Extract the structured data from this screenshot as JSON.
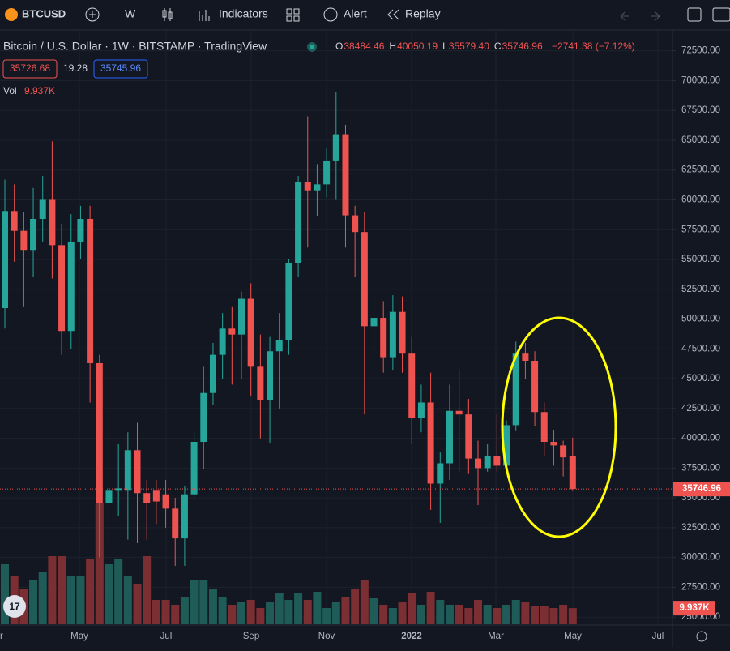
{
  "toolbar": {
    "symbol": "BTCUSD",
    "interval": "W",
    "indicators": "Indicators",
    "alert": "Alert",
    "replay": "Replay"
  },
  "header": {
    "title": "Bitcoin / U.S. Dollar · 1W · BITSTAMP · TradingView",
    "ohlc": [
      {
        "label": "O",
        "value": "38484.46"
      },
      {
        "label": "H",
        "value": "40050.19"
      },
      {
        "label": "L",
        "value": "35579.40"
      },
      {
        "label": "C",
        "value": "35746.96"
      }
    ],
    "change": "−2741.38 (−7.12%)",
    "bid": "35726.68",
    "spread": "19.28",
    "ask": "35745.96",
    "vol_label": "Vol",
    "vol_value": "9.937K"
  },
  "chart_data": {
    "type": "candlestick",
    "x_labels": [
      "r",
      "May",
      "Jul",
      "Sep",
      "Nov",
      "2022",
      "Mar",
      "May",
      "Jul"
    ],
    "open": [
      50920,
      59060,
      57400,
      55800,
      58400,
      60000,
      56200,
      49000,
      56500,
      58400,
      46300,
      34600,
      35600,
      35600,
      39000,
      35400,
      35600,
      35300,
      34100,
      31600,
      35300,
      39700,
      43800,
      47000,
      49200,
      48700,
      51700,
      46000,
      43200,
      47300,
      48200,
      54700,
      61500,
      60800,
      61300,
      63300,
      65500,
      58700,
      57300,
      49400,
      50100,
      46800,
      50600,
      47100,
      41700,
      43000,
      36200,
      37900,
      42300,
      42000,
      38300,
      37500,
      38500,
      37700,
      41100,
      47100,
      46500,
      42200,
      39700,
      39400,
      38484.46
    ],
    "high": [
      61700,
      61300,
      59000,
      61000,
      62000,
      64900,
      58000,
      58800,
      59500,
      59500,
      47000,
      42400,
      39500,
      40500,
      41300,
      36500,
      36500,
      36500,
      35000,
      36000,
      40500,
      46000,
      48000,
      50500,
      51000,
      52300,
      53000,
      48700,
      48500,
      50500,
      55000,
      62000,
      67000,
      63000,
      64300,
      69000,
      66300,
      59500,
      59000,
      51900,
      51500,
      52000,
      51900,
      48500,
      44500,
      45500,
      38800,
      44500,
      45800,
      43300,
      39800,
      39500,
      42000,
      41500,
      48100,
      48000,
      47300,
      43000,
      40700,
      39800,
      40050.19
    ],
    "low": [
      49200,
      54800,
      51000,
      53500,
      56500,
      53400,
      47000,
      47500,
      55000,
      43000,
      30000,
      31000,
      33500,
      31500,
      31200,
      31500,
      32800,
      32500,
      29300,
      29300,
      35000,
      37400,
      42800,
      45000,
      44500,
      45000,
      43500,
      40000,
      39600,
      42500,
      47000,
      53500,
      56000,
      58600,
      60200,
      60000,
      56000,
      53500,
      42000,
      47000,
      45500,
      45700,
      45500,
      39500,
      40500,
      34000,
      32900,
      36500,
      37200,
      37000,
      34400,
      37200,
      37200,
      37500,
      40600,
      45000,
      41000,
      38500,
      37700,
      36800,
      35579.4
    ],
    "close": [
      59060,
      57400,
      55800,
      58400,
      60000,
      56200,
      49000,
      56500,
      58400,
      46300,
      34600,
      35600,
      35800,
      39000,
      35400,
      34600,
      34700,
      34100,
      31600,
      35300,
      39700,
      43800,
      47000,
      49200,
      48700,
      51700,
      46000,
      43200,
      47300,
      48200,
      54700,
      61500,
      60800,
      61300,
      63300,
      65500,
      58700,
      57300,
      49400,
      50100,
      46800,
      50600,
      47100,
      41700,
      43000,
      36200,
      37900,
      42300,
      42000,
      38300,
      37500,
      38500,
      37700,
      41100,
      47100,
      46500,
      42200,
      39700,
      39400,
      38400,
      35746.96
    ],
    "volume": [
      37,
      30,
      22,
      27,
      32,
      42,
      42,
      30,
      30,
      40,
      75,
      37,
      40,
      30,
      25,
      42,
      15,
      15,
      12,
      17,
      27,
      27,
      22,
      17,
      12,
      14,
      15,
      10,
      14,
      19,
      15,
      19,
      15,
      20,
      10,
      14,
      17,
      22,
      27,
      16,
      12,
      10,
      14,
      19,
      12,
      20,
      15,
      12,
      12,
      10,
      15,
      12,
      10,
      12,
      15,
      14,
      11,
      11,
      10,
      12,
      9.937
    ],
    "volume_last_label": "9.937K",
    "up_color": "#26a69a",
    "down_color": "#ef5350",
    "volume_up_color": "#1f5c58",
    "volume_down_color": "#7b2f33",
    "ylim": [
      24400,
      73700
    ],
    "yticks": [
      {
        "value": 25000,
        "label": "25000.00"
      },
      {
        "value": 27500,
        "label": "27500.00"
      },
      {
        "value": 30000,
        "label": "30000.00"
      },
      {
        "value": 32500,
        "label": "32500.00"
      },
      {
        "value": 35000,
        "label": "35000.00"
      },
      {
        "value": 37500,
        "label": "37500.00"
      },
      {
        "value": 40000,
        "label": "40000.00"
      },
      {
        "value": 42500,
        "label": "42500.00"
      },
      {
        "value": 45000,
        "label": "45000.00"
      },
      {
        "value": 47500,
        "label": "47500.00"
      },
      {
        "value": 50000,
        "label": "50000.00"
      },
      {
        "value": 52500,
        "label": "52500.00"
      },
      {
        "value": 55000,
        "label": "55000.00"
      },
      {
        "value": 57500,
        "label": "57500.00"
      },
      {
        "value": 60000,
        "label": "60000.00"
      },
      {
        "value": 62500,
        "label": "62500.00"
      },
      {
        "value": 65000,
        "label": "65000.00"
      },
      {
        "value": 67500,
        "label": "67500.00"
      },
      {
        "value": 70000,
        "label": "70000.00"
      },
      {
        "value": 72500,
        "label": "72500.00"
      }
    ],
    "grid": true
  }
}
